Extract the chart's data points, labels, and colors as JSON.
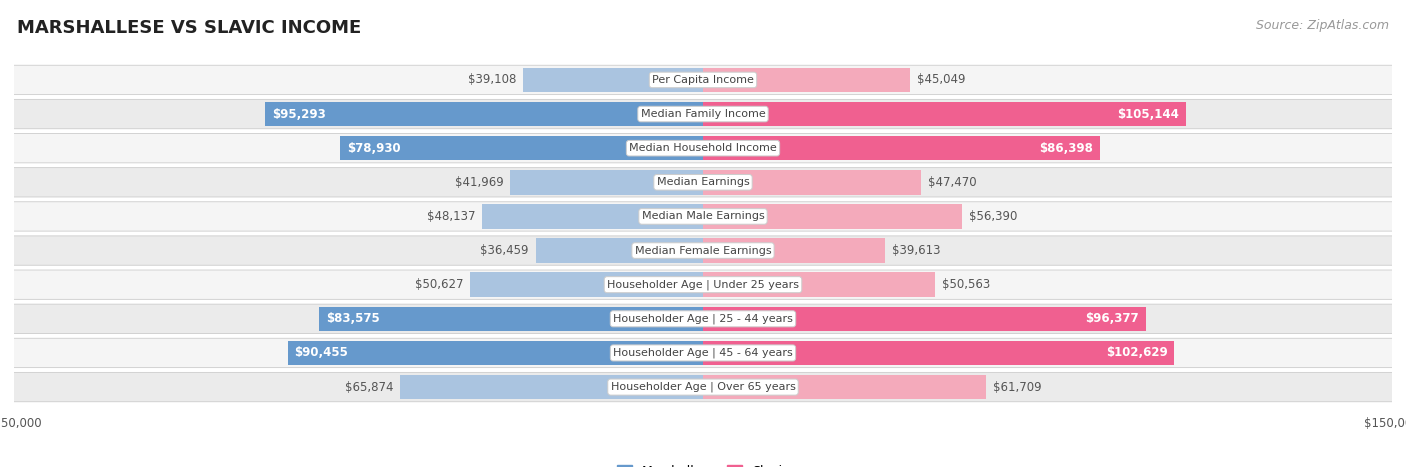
{
  "title": "MARSHALLESE VS SLAVIC INCOME",
  "source": "Source: ZipAtlas.com",
  "categories": [
    "Per Capita Income",
    "Median Family Income",
    "Median Household Income",
    "Median Earnings",
    "Median Male Earnings",
    "Median Female Earnings",
    "Householder Age | Under 25 years",
    "Householder Age | 25 - 44 years",
    "Householder Age | 45 - 64 years",
    "Householder Age | Over 65 years"
  ],
  "marshallese": [
    39108,
    95293,
    78930,
    41969,
    48137,
    36459,
    50627,
    83575,
    90455,
    65874
  ],
  "slavic": [
    45049,
    105144,
    86398,
    47470,
    56390,
    39613,
    50563,
    96377,
    102629,
    61709
  ],
  "max_val": 150000,
  "blue_light": "#aac4e0",
  "blue_dark": "#6699cc",
  "pink_light": "#f4aabb",
  "pink_dark": "#f06090",
  "row_colors": [
    "#f5f5f5",
    "#ebebeb"
  ],
  "row_border": "#cccccc",
  "label_outside_color": "#555555",
  "label_inside_color": "#ffffff",
  "cat_box_color": "#ffffff",
  "cat_box_border": "#cccccc",
  "cat_text_color": "#444444",
  "title_color": "#222222",
  "source_color": "#999999",
  "axis_tick_color": "#555555",
  "title_fontsize": 13,
  "label_fontsize": 8.5,
  "category_fontsize": 8.0,
  "legend_fontsize": 9,
  "source_fontsize": 9,
  "axis_label_fontsize": 8.5,
  "inside_threshold": 0.28
}
